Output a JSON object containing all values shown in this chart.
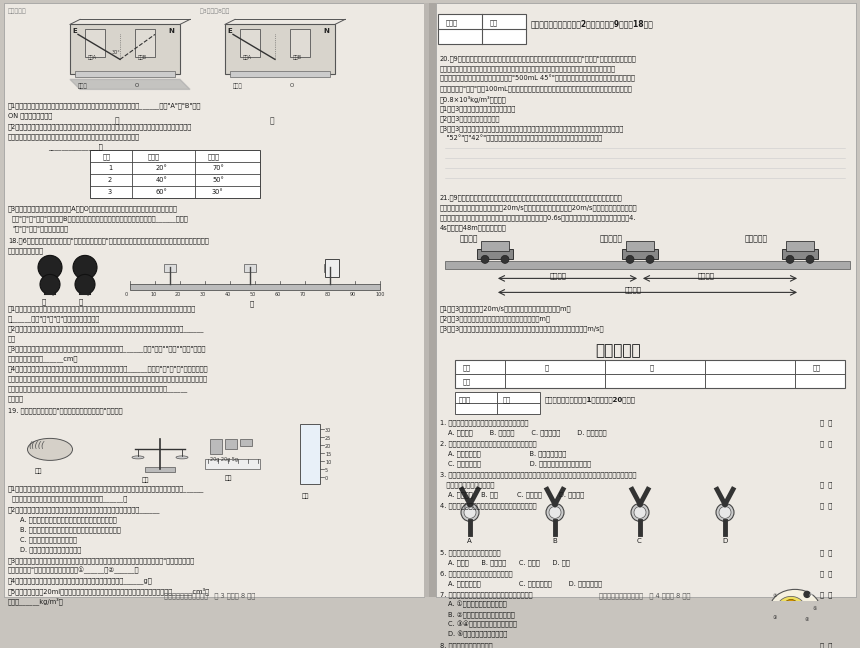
{
  "background_color": "#c8c4be",
  "page_bg": "#ede9e3",
  "text_color": "#1a1a1a",
  "page3_footer": "八年级物理、生物和地理   第 3 页（共 8 页）",
  "page4_footer": "八年级物理、生物和地理   第 4 页（共 8 页）"
}
